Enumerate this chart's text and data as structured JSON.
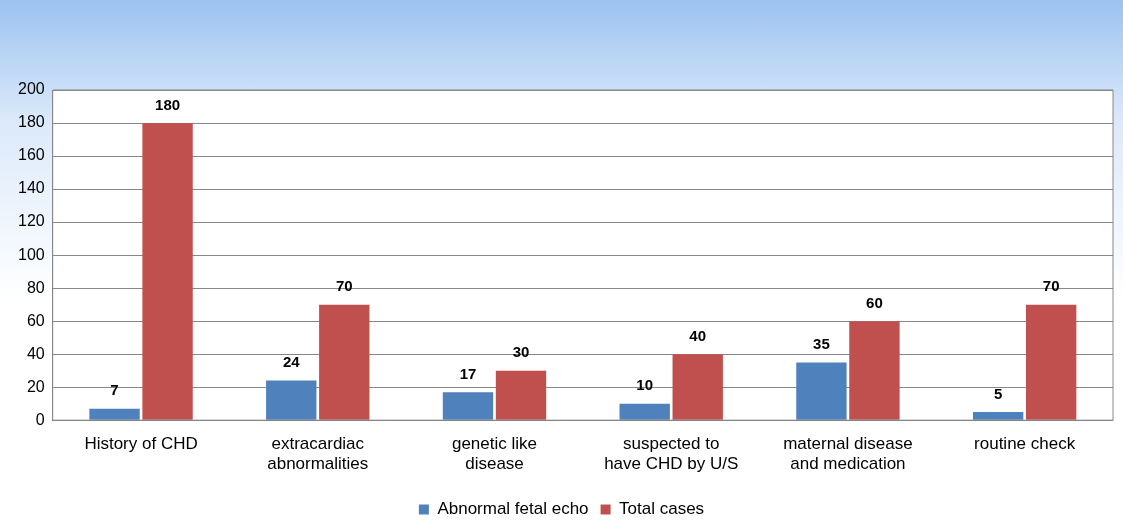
{
  "chart_data": {
    "type": "bar",
    "categories": [
      "History of CHD",
      "extracardiac abnormalities",
      "genetic like disease",
      "suspected to have CHD by U/S",
      "maternal disease and medication",
      "routine check"
    ],
    "series": [
      {
        "name": "Abnormal fetal echo",
        "color": "#4f81bd",
        "values": [
          7,
          24,
          17,
          10,
          35,
          5
        ]
      },
      {
        "name": "Total cases",
        "color": "#c0504d",
        "values": [
          180,
          70,
          30,
          40,
          60,
          70
        ]
      }
    ],
    "ylim": [
      0,
      200
    ],
    "yticks": [
      0,
      20,
      40,
      60,
      80,
      100,
      120,
      140,
      160,
      180,
      200
    ],
    "grid": "y",
    "legend": "bottom",
    "data_labels": true
  }
}
